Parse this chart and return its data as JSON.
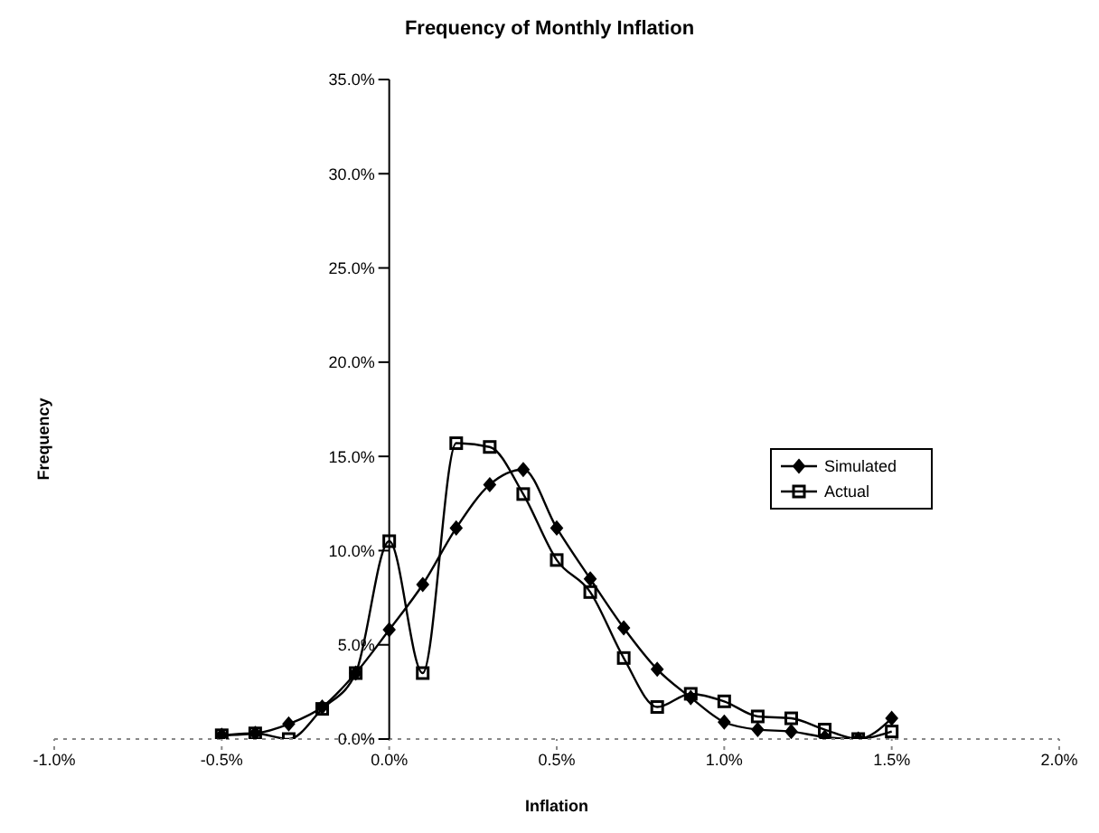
{
  "chart_data": {
    "type": "line",
    "title": "Frequency of Monthly Inflation",
    "xlabel": "Inflation",
    "ylabel": "Frequency",
    "x": [
      -0.5,
      -0.4,
      -0.3,
      -0.2,
      -0.1,
      0.0,
      0.1,
      0.2,
      0.3,
      0.4,
      0.5,
      0.6,
      0.7,
      0.8,
      0.9,
      1.0,
      1.1,
      1.2,
      1.3,
      1.4,
      1.5
    ],
    "series": [
      {
        "name": "Simulated",
        "color": "#000000",
        "marker": "diamond",
        "values": [
          0.2,
          0.3,
          0.8,
          1.7,
          3.5,
          5.8,
          8.2,
          11.2,
          13.5,
          14.3,
          11.2,
          8.5,
          5.9,
          3.7,
          2.2,
          0.9,
          0.5,
          0.4,
          0.1,
          0.0,
          1.1
        ]
      },
      {
        "name": "Actual",
        "color": "#000000",
        "marker": "square",
        "values": [
          0.2,
          0.3,
          0.0,
          1.6,
          3.5,
          10.5,
          3.5,
          15.7,
          15.5,
          13.0,
          9.5,
          7.8,
          4.3,
          1.7,
          2.4,
          2.0,
          1.2,
          1.1,
          0.5,
          0.0,
          0.4
        ]
      }
    ],
    "xlim": [
      -1,
      2
    ],
    "xticks": [
      {
        "value": -1,
        "label": "-1.0%"
      },
      {
        "value": -0.5,
        "label": "-0.5%"
      },
      {
        "value": 0,
        "label": "0.0%"
      },
      {
        "value": 0.5,
        "label": "0.5%"
      },
      {
        "value": 1,
        "label": "1.0%"
      },
      {
        "value": 1.5,
        "label": "1.5%"
      },
      {
        "value": 2,
        "label": "2.0%"
      }
    ],
    "ylim": [
      0,
      35
    ],
    "yticks": [
      {
        "value": 0,
        "label": "0.0%"
      },
      {
        "value": 5,
        "label": "5.0%"
      },
      {
        "value": 10,
        "label": "10.0%"
      },
      {
        "value": 15,
        "label": "15.0%"
      },
      {
        "value": 20,
        "label": "20.0%"
      },
      {
        "value": 25,
        "label": "25.0%"
      },
      {
        "value": 30,
        "label": "30.0%"
      },
      {
        "value": 35,
        "label": "35.0%"
      }
    ],
    "legend": "right",
    "grid": false
  }
}
